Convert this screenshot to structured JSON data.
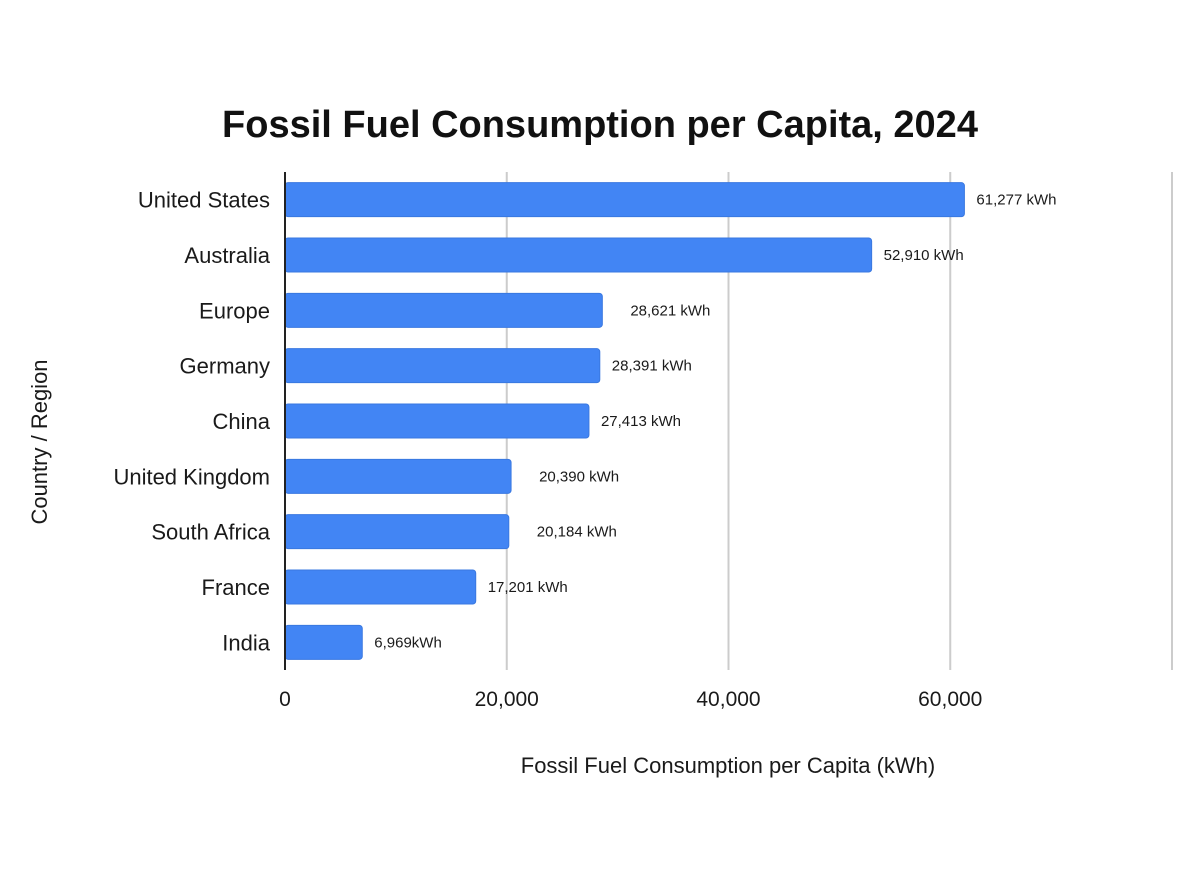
{
  "chart_data": {
    "type": "bar",
    "orientation": "horizontal",
    "title": "Fossil Fuel Consumption per Capita, 2024",
    "xlabel": "Fossil Fuel Consumption per Capita (kWh)",
    "ylabel": "Country / Region",
    "categories": [
      "United States",
      "Australia",
      "Europe",
      "Germany",
      "China",
      "United Kingdom",
      "South Africa",
      "France",
      "India"
    ],
    "values": [
      61277,
      52910,
      28621,
      28391,
      27413,
      20390,
      20184,
      17201,
      6969
    ],
    "data_labels": [
      "61,277 kWh",
      "52,910 kWh",
      "28,621 kWh",
      "28,391 kWh",
      "27,413 kWh",
      "20,390 kWh",
      "20,184 kWh",
      "17,201 kWh",
      "6,969kWh"
    ],
    "xlim": [
      0,
      80000
    ],
    "xticks": [
      0,
      20000,
      40000,
      60000,
      80000
    ],
    "xtick_labels": [
      "0",
      "20,000",
      "40,000",
      "60,000",
      ""
    ],
    "grid": true,
    "legend": "none",
    "colors": {
      "bar": "#4285f4",
      "bar_border": "#3a78e0",
      "grid": "#cccccc",
      "axis": "#222222"
    }
  }
}
